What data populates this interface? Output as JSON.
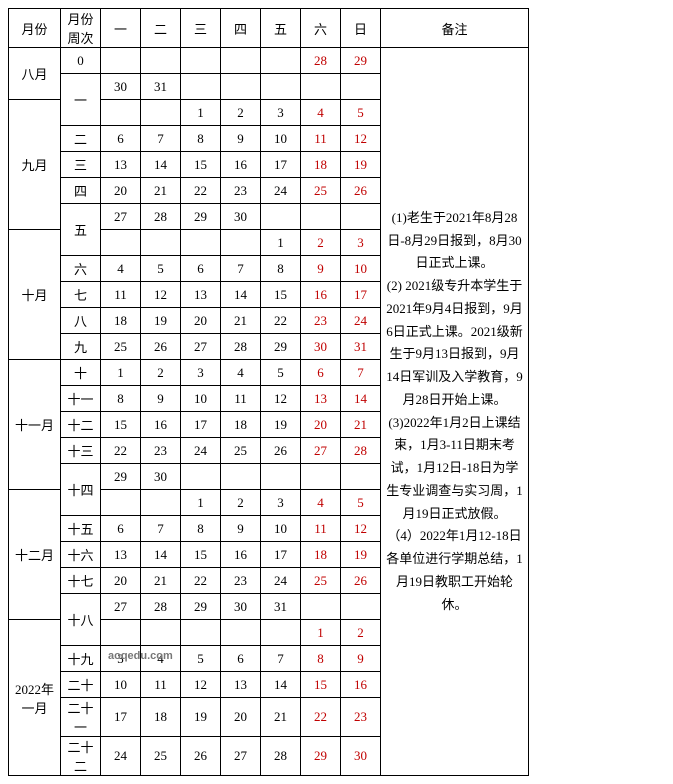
{
  "headers": {
    "month": "月份",
    "week": "月份周次",
    "days": [
      "一",
      "二",
      "三",
      "四",
      "五",
      "六",
      "日"
    ],
    "notes": "备注"
  },
  "months": [
    {
      "label": "八月",
      "span": 2
    },
    {
      "label": "九月",
      "span": 5
    },
    {
      "label": "十月",
      "span": 5
    },
    {
      "label": "十一月",
      "span": 5
    },
    {
      "label": "十二月",
      "span": 5
    },
    {
      "label": "2022年一月",
      "span": 5
    }
  ],
  "weeks": [
    {
      "label": "0",
      "span": 1
    },
    {
      "label": "一",
      "span": 2
    },
    {
      "label": "二",
      "span": 1
    },
    {
      "label": "三",
      "span": 1
    },
    {
      "label": "四",
      "span": 1
    },
    {
      "label": "五",
      "span": 2
    },
    {
      "label": "六",
      "span": 1
    },
    {
      "label": "七",
      "span": 1
    },
    {
      "label": "八",
      "span": 1
    },
    {
      "label": "九",
      "span": 1
    },
    {
      "label": "十",
      "span": 1
    },
    {
      "label": "十一",
      "span": 1
    },
    {
      "label": "十二",
      "span": 1
    },
    {
      "label": "十三",
      "span": 1
    },
    {
      "label": "十四",
      "span": 2
    },
    {
      "label": "十五",
      "span": 1
    },
    {
      "label": "十六",
      "span": 1
    },
    {
      "label": "十七",
      "span": 1
    },
    {
      "label": "十八",
      "span": 2
    },
    {
      "label": "十九",
      "span": 1
    },
    {
      "label": "二十",
      "span": 1
    },
    {
      "label": "二十一",
      "span": 1
    },
    {
      "label": "二十二",
      "span": 1
    }
  ],
  "rows": [
    [
      "",
      "",
      "",
      "",
      "",
      "28",
      "29"
    ],
    [
      "30",
      "31",
      "",
      "",
      "",
      "",
      ""
    ],
    [
      "",
      "",
      "1",
      "2",
      "3",
      "4",
      "5"
    ],
    [
      "6",
      "7",
      "8",
      "9",
      "10",
      "11",
      "12"
    ],
    [
      "13",
      "14",
      "15",
      "16",
      "17",
      "18",
      "19"
    ],
    [
      "20",
      "21",
      "22",
      "23",
      "24",
      "25",
      "26"
    ],
    [
      "27",
      "28",
      "29",
      "30",
      "",
      "",
      ""
    ],
    [
      "",
      "",
      "",
      "",
      "1",
      "2",
      "3"
    ],
    [
      "4",
      "5",
      "6",
      "7",
      "8",
      "9",
      "10"
    ],
    [
      "11",
      "12",
      "13",
      "14",
      "15",
      "16",
      "17"
    ],
    [
      "18",
      "19",
      "20",
      "21",
      "22",
      "23",
      "24"
    ],
    [
      "25",
      "26",
      "27",
      "28",
      "29",
      "30",
      "31"
    ],
    [
      "1",
      "2",
      "3",
      "4",
      "5",
      "6",
      "7"
    ],
    [
      "8",
      "9",
      "10",
      "11",
      "12",
      "13",
      "14"
    ],
    [
      "15",
      "16",
      "17",
      "18",
      "19",
      "20",
      "21"
    ],
    [
      "22",
      "23",
      "24",
      "25",
      "26",
      "27",
      "28"
    ],
    [
      "29",
      "30",
      "",
      "",
      "",
      "",
      ""
    ],
    [
      "",
      "",
      "1",
      "2",
      "3",
      "4",
      "5"
    ],
    [
      "6",
      "7",
      "8",
      "9",
      "10",
      "11",
      "12"
    ],
    [
      "13",
      "14",
      "15",
      "16",
      "17",
      "18",
      "19"
    ],
    [
      "20",
      "21",
      "22",
      "23",
      "24",
      "25",
      "26"
    ],
    [
      "27",
      "28",
      "29",
      "30",
      "31",
      "",
      ""
    ],
    [
      "",
      "",
      "",
      "",
      "",
      "1",
      "2"
    ],
    [
      "3",
      "4",
      "5",
      "6",
      "7",
      "8",
      "9"
    ],
    [
      "10",
      "11",
      "12",
      "13",
      "14",
      "15",
      "16"
    ],
    [
      "17",
      "18",
      "19",
      "20",
      "21",
      "22",
      "23"
    ],
    [
      "24",
      "25",
      "26",
      "27",
      "28",
      "29",
      "30"
    ]
  ],
  "notes_text": "(1)老生于2021年8月28日-8月29日报到，8月30日正式上课。\n(2) 2021级专升本学生于2021年9月4日报到，9月6日正式上课。2021级新生于9月13日报到，9月14日军训及入学教育，9月28日开始上课。\n(3)2022年1月2日上课结束，1月3-11日期末考试，1月12日-18日为学生专业调查与实习周，1月19日正式放假。\n（4）2022年1月12-18日各单位进行学期总结，1月19日教职工开始轮休。",
  "watermark_text": "aoqedu.com",
  "colors": {
    "weekend": "#c00000",
    "border": "#000000",
    "background": "#ffffff"
  }
}
